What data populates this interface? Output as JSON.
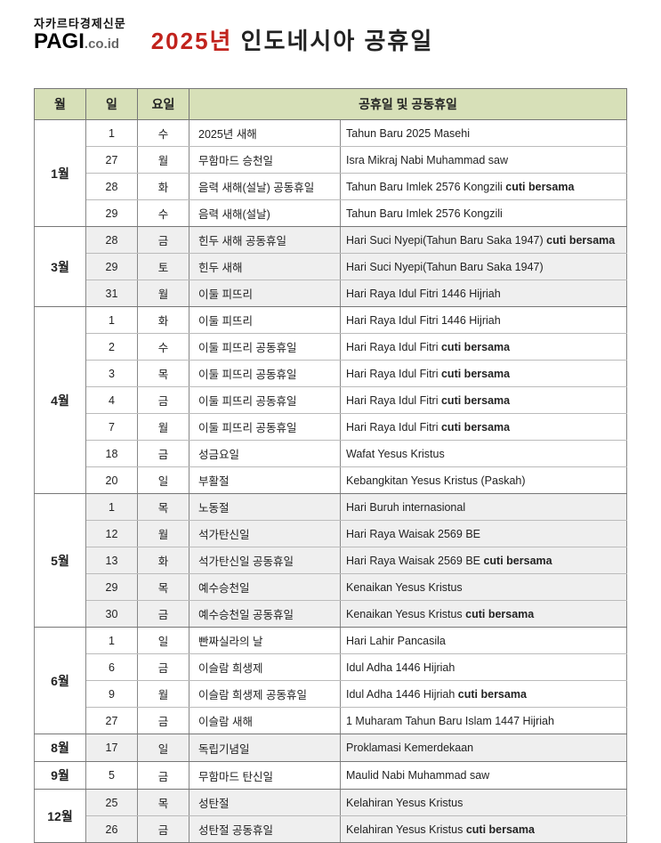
{
  "logo": {
    "top": "자카르타경제신문",
    "brand": "PAGI",
    "suffix": ".co.id"
  },
  "title": {
    "year": "2025년",
    "rest": " 인도네시아 공휴일"
  },
  "headers": {
    "month": "월",
    "day": "일",
    "dow": "요일",
    "desc": "공휴일 및 공동휴일"
  },
  "months": [
    {
      "label": "1월",
      "shade": false,
      "rows": [
        {
          "day": "1",
          "dow": "수",
          "kr": "2025년 새해",
          "id": "Tahun Baru 2025 Masehi",
          "bold": false
        },
        {
          "day": "27",
          "dow": "월",
          "kr": "무함마드 승천일",
          "id": "Isra Mikraj Nabi Muhammad saw",
          "bold": false
        },
        {
          "day": "28",
          "dow": "화",
          "kr": "음력 새해(설날) 공동휴일",
          "id": "Tahun Baru Imlek 2576 Kongzili",
          "bold": true,
          "boldText": "cuti bersama"
        },
        {
          "day": "29",
          "dow": "수",
          "kr": "음력 새해(설날)",
          "id": "Tahun Baru Imlek 2576 Kongzili",
          "bold": false
        }
      ]
    },
    {
      "label": "3월",
      "shade": true,
      "rows": [
        {
          "day": "28",
          "dow": "금",
          "kr": "힌두 새해 공동휴일",
          "id": "Hari Suci Nyepi(Tahun Baru Saka 1947)",
          "bold": true,
          "boldText": "cuti bersama"
        },
        {
          "day": "29",
          "dow": "토",
          "kr": "힌두 새해",
          "id": "Hari Suci Nyepi(Tahun Baru Saka 1947)",
          "bold": false
        },
        {
          "day": "31",
          "dow": "월",
          "kr": "이둘 피뜨리",
          "id": "Hari Raya Idul Fitri 1446 Hijriah",
          "bold": false
        }
      ]
    },
    {
      "label": "4월",
      "shade": false,
      "rows": [
        {
          "day": "1",
          "dow": "화",
          "kr": "이둘 피뜨리",
          "id": "Hari Raya Idul Fitri 1446 Hijriah",
          "bold": false
        },
        {
          "day": "2",
          "dow": "수",
          "kr": "이둘 피뜨리 공동휴일",
          "id": "Hari Raya Idul Fitri",
          "bold": true,
          "boldText": "cuti bersama"
        },
        {
          "day": "3",
          "dow": "목",
          "kr": "이둘 피뜨리 공동휴일",
          "id": "Hari Raya Idul Fitri",
          "bold": true,
          "boldText": "cuti bersama"
        },
        {
          "day": "4",
          "dow": "금",
          "kr": "이둘 피뜨리 공동휴일",
          "id": "Hari Raya Idul Fitri",
          "bold": true,
          "boldText": "cuti bersama"
        },
        {
          "day": "7",
          "dow": "월",
          "kr": "이둘 피뜨리 공동휴일",
          "id": "Hari Raya Idul Fitri",
          "bold": true,
          "boldText": "cuti bersama"
        },
        {
          "day": "18",
          "dow": "금",
          "kr": "성금요일",
          "id": "Wafat Yesus Kristus",
          "bold": false
        },
        {
          "day": "20",
          "dow": "일",
          "kr": "부활절",
          "id": "Kebangkitan Yesus Kristus (Paskah)",
          "bold": false
        }
      ]
    },
    {
      "label": "5월",
      "shade": true,
      "rows": [
        {
          "day": "1",
          "dow": "목",
          "kr": "노동절",
          "id": "Hari Buruh internasional",
          "bold": false
        },
        {
          "day": "12",
          "dow": "월",
          "kr": "석가탄신일",
          "id": "Hari Raya Waisak 2569 BE",
          "bold": false
        },
        {
          "day": "13",
          "dow": "화",
          "kr": "석가탄신일  공동휴일",
          "id": "Hari Raya Waisak 2569 BE",
          "bold": true,
          "boldText": "cuti bersama"
        },
        {
          "day": "29",
          "dow": "목",
          "kr": "예수승천일",
          "id": "Kenaikan Yesus Kristus",
          "bold": false
        },
        {
          "day": "30",
          "dow": "금",
          "kr": "예수승천일 공동휴일",
          "id": "Kenaikan Yesus Kristus",
          "bold": true,
          "boldText": "cuti bersama"
        }
      ]
    },
    {
      "label": "6월",
      "shade": false,
      "rows": [
        {
          "day": "1",
          "dow": "일",
          "kr": "빤짜실라의 날",
          "id": "Hari Lahir Pancasila",
          "bold": false
        },
        {
          "day": "6",
          "dow": "금",
          "kr": "이슬람 희생제",
          "id": "Idul Adha 1446 Hijriah",
          "bold": false
        },
        {
          "day": "9",
          "dow": "월",
          "kr": "이슬람 희생제 공동휴일",
          "id": "Idul Adha 1446 Hijriah",
          "bold": true,
          "boldText": "cuti bersama"
        },
        {
          "day": "27",
          "dow": "금",
          "kr": "이슬람 새해",
          "id": "1 Muharam Tahun Baru Islam 1447 Hijriah",
          "bold": false
        }
      ]
    },
    {
      "label": "8월",
      "shade": true,
      "rows": [
        {
          "day": "17",
          "dow": "일",
          "kr": "독립기념일",
          "id": "Proklamasi Kemerdekaan",
          "bold": false
        }
      ]
    },
    {
      "label": "9월",
      "shade": false,
      "rows": [
        {
          "day": "5",
          "dow": "금",
          "kr": "무함마드 탄신일",
          "id": "Maulid Nabi Muhammad saw",
          "bold": false
        }
      ]
    },
    {
      "label": "12월",
      "shade": true,
      "rows": [
        {
          "day": "25",
          "dow": "목",
          "kr": "성탄절",
          "id": "Kelahiran Yesus Kristus",
          "bold": false
        },
        {
          "day": "26",
          "dow": "금",
          "kr": "성탄절 공동휴일",
          "id": "Kelahiran Yesus Kristus",
          "bold": true,
          "boldText": "cuti bersama"
        }
      ]
    }
  ]
}
